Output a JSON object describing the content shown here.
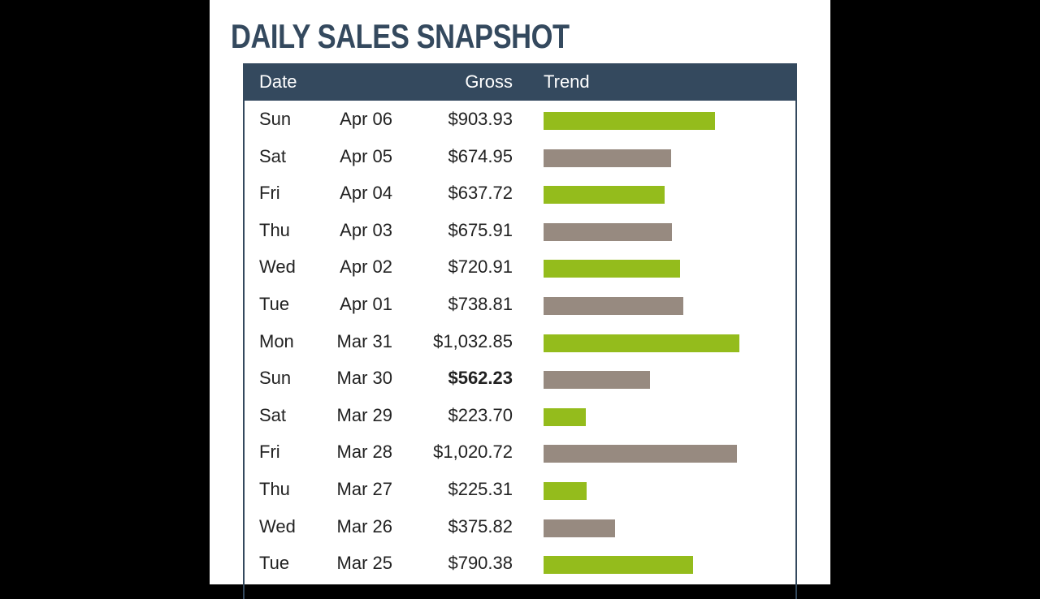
{
  "chart_data": {
    "type": "table",
    "title": "DAILY SALES SNAPSHOT",
    "columns": [
      "Date",
      "Gross",
      "Trend"
    ],
    "colors": {
      "green": "#94bc1c",
      "taupe": "#978a80",
      "header": "#34495e"
    },
    "rows": [
      {
        "day": "Sun",
        "date": "Apr 06",
        "gross": "$903.93",
        "value": 903.93,
        "color": "green"
      },
      {
        "day": "Sat",
        "date": "Apr 05",
        "gross": "$674.95",
        "value": 674.95,
        "color": "taupe"
      },
      {
        "day": "Fri",
        "date": "Apr 04",
        "gross": "$637.72",
        "value": 637.72,
        "color": "green"
      },
      {
        "day": "Thu",
        "date": "Apr 03",
        "gross": "$675.91",
        "value": 675.91,
        "color": "taupe"
      },
      {
        "day": "Wed",
        "date": "Apr 02",
        "gross": "$720.91",
        "value": 720.91,
        "color": "green"
      },
      {
        "day": "Tue",
        "date": "Apr 01",
        "gross": "$738.81",
        "value": 738.81,
        "color": "taupe"
      },
      {
        "day": "Mon",
        "date": "Mar 31",
        "gross": "$1,032.85",
        "value": 1032.85,
        "color": "green"
      },
      {
        "day": "Sun",
        "date": "Mar 30",
        "gross": "$562.23",
        "value": 562.23,
        "color": "taupe",
        "bold": true
      },
      {
        "day": "Sat",
        "date": "Mar 29",
        "gross": "$223.70",
        "value": 223.7,
        "color": "green"
      },
      {
        "day": "Fri",
        "date": "Mar 28",
        "gross": "$1,020.72",
        "value": 1020.72,
        "color": "taupe"
      },
      {
        "day": "Thu",
        "date": "Mar 27",
        "gross": "$225.31",
        "value": 225.31,
        "color": "green"
      },
      {
        "day": "Wed",
        "date": "Mar 26",
        "gross": "$375.82",
        "value": 375.82,
        "color": "taupe"
      },
      {
        "day": "Tue",
        "date": "Mar 25",
        "gross": "$790.38",
        "value": 790.38,
        "color": "green"
      }
    ]
  }
}
